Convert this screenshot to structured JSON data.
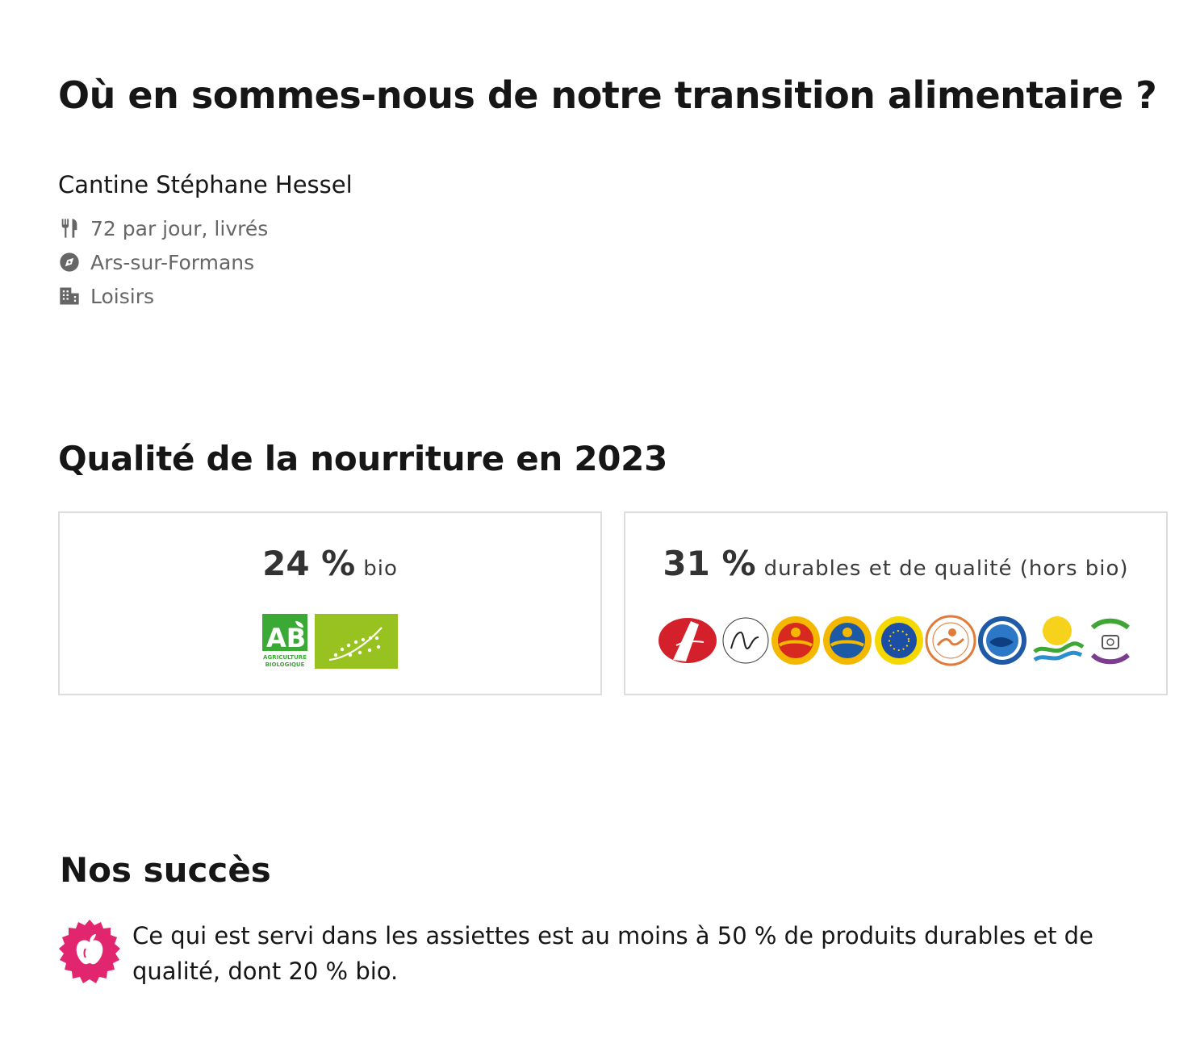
{
  "header": {
    "title": "Où en sommes-nous de notre transition alimentaire ?"
  },
  "canteen": {
    "name": "Cantine Stéphane Hessel",
    "meals": "72 par jour, livrés",
    "city": "Ars-sur-Formans",
    "sector": "Loisirs",
    "icons": [
      "restaurant-icon",
      "compass-icon",
      "building-icon"
    ]
  },
  "quality": {
    "title": "Qualité de la nourriture en 2023",
    "bio": {
      "value": "24 %",
      "label": "bio",
      "logo_ab_text": "AB",
      "logo_ab_caption_1": "AGRICULTURE",
      "logo_ab_caption_2": "BIOLOGIQUE"
    },
    "durable": {
      "value": "31 %",
      "label": "durables et de qualité (hors bio)",
      "logos": [
        "label-rouge-logo",
        "aoc-logo",
        "aop-logo",
        "igp-logo",
        "stg-logo",
        "hve-logo",
        "peche-durable-logo",
        "rup-logo",
        "commerce-equitable-logo"
      ]
    }
  },
  "success": {
    "title": "Nos succès",
    "text": "Ce qui est servi dans les assiettes est au moins à 50 % de produits durables et de qualité, dont 20 % bio.",
    "badge_color": "#e1256e"
  }
}
